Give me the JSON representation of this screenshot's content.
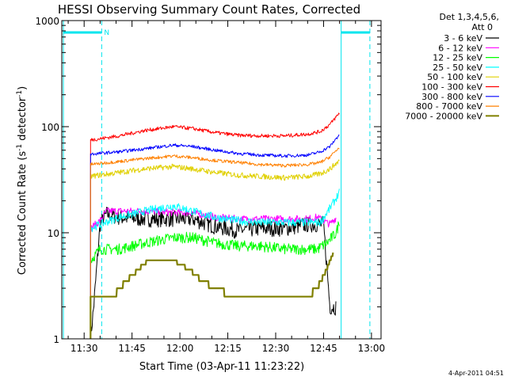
{
  "chart_data": {
    "type": "line",
    "title": "HESSI Observing Summary Count Rates, Corrected",
    "xlabel": "Start Time (03-Apr-11 11:23:22)",
    "ylabel_parts": [
      "Corrected Count Rate (s",
      "-1",
      " detector",
      "-1",
      ")"
    ],
    "ylog": true,
    "ylim": [
      1,
      1000
    ],
    "xlim_minutes_after_1123": [
      0,
      100
    ],
    "x_ticks": [
      {
        "label": "11:30",
        "t": 7
      },
      {
        "label": "11:45",
        "t": 22
      },
      {
        "label": "12:00",
        "t": 37
      },
      {
        "label": "12:15",
        "t": 52
      },
      {
        "label": "12:30",
        "t": 67
      },
      {
        "label": "12:45",
        "t": 82
      },
      {
        "label": "13:00",
        "t": 97
      }
    ],
    "y_ticks": [
      {
        "label": "1",
        "v": 1
      },
      {
        "label": "10",
        "v": 10
      },
      {
        "label": "100",
        "v": 100
      },
      {
        "label": "1000",
        "v": 1000
      }
    ],
    "legend_header": [
      "Det 1,3,4,5,6,",
      "Att 0"
    ],
    "night_marker": "N",
    "night_bars": [
      [
        0,
        12.5
      ],
      [
        87.5,
        96.5
      ]
    ],
    "night_boundaries": [
      -2,
      12.5,
      87.5,
      96.5
    ],
    "footer_date": "4-Apr-2011 04:51",
    "series": [
      {
        "name": "3 - 6 keV",
        "color": "#000000",
        "points": [
          [
            9,
            1.0
          ],
          [
            10,
            2.0
          ],
          [
            12,
            12
          ],
          [
            14,
            15
          ],
          [
            18,
            14
          ],
          [
            26,
            13.5
          ],
          [
            35,
            13.5
          ],
          [
            41,
            13.5
          ],
          [
            48,
            11.5
          ],
          [
            55,
            10.5
          ],
          [
            62,
            11
          ],
          [
            70,
            11
          ],
          [
            77,
            12
          ],
          [
            82,
            12
          ],
          [
            84,
            2
          ],
          [
            86,
            2
          ]
        ]
      },
      {
        "name": "6 - 12 keV",
        "color": "#ff00ff",
        "points": [
          [
            9,
            11
          ],
          [
            12,
            13
          ],
          [
            14,
            16
          ],
          [
            18,
            16
          ],
          [
            26,
            16
          ],
          [
            35,
            15.5
          ],
          [
            41,
            15.5
          ],
          [
            48,
            14
          ],
          [
            55,
            13.5
          ],
          [
            62,
            13.5
          ],
          [
            70,
            13.5
          ],
          [
            77,
            13.5
          ],
          [
            80,
            14
          ],
          [
            84,
            12
          ],
          [
            86,
            14
          ]
        ]
      },
      {
        "name": "12 - 25 keV",
        "color": "#00ff00",
        "points": [
          [
            9,
            5.5
          ],
          [
            12,
            7
          ],
          [
            18,
            7
          ],
          [
            26,
            8
          ],
          [
            35,
            9
          ],
          [
            41,
            9
          ],
          [
            48,
            8
          ],
          [
            55,
            7.5
          ],
          [
            62,
            7.5
          ],
          [
            70,
            7
          ],
          [
            77,
            7
          ],
          [
            80,
            7
          ],
          [
            83,
            8
          ],
          [
            86,
            10
          ],
          [
            87,
            13
          ]
        ]
      },
      {
        "name": "25 - 50 keV",
        "color": "#00ffff",
        "points": [
          [
            9,
            11
          ],
          [
            12,
            12
          ],
          [
            18,
            14
          ],
          [
            26,
            16
          ],
          [
            35,
            18
          ],
          [
            41,
            16
          ],
          [
            48,
            14
          ],
          [
            55,
            13
          ],
          [
            62,
            12.5
          ],
          [
            70,
            12.5
          ],
          [
            77,
            12.5
          ],
          [
            81,
            12.5
          ],
          [
            84,
            17
          ],
          [
            87,
            24
          ]
        ]
      },
      {
        "name": "50 - 100 keV",
        "color": "#e0d000",
        "points": [
          [
            9,
            34
          ],
          [
            12,
            35
          ],
          [
            18,
            37
          ],
          [
            26,
            40
          ],
          [
            35,
            42
          ],
          [
            41,
            40
          ],
          [
            48,
            37
          ],
          [
            55,
            35
          ],
          [
            62,
            34
          ],
          [
            70,
            33
          ],
          [
            77,
            34
          ],
          [
            81,
            36
          ],
          [
            84,
            40
          ],
          [
            87,
            48
          ]
        ]
      },
      {
        "name": "100 - 300 keV",
        "color": "#ff0000",
        "points": [
          [
            9,
            75
          ],
          [
            12,
            77
          ],
          [
            18,
            82
          ],
          [
            26,
            92
          ],
          [
            35,
            100
          ],
          [
            41,
            96
          ],
          [
            48,
            88
          ],
          [
            55,
            83
          ],
          [
            62,
            82
          ],
          [
            70,
            82
          ],
          [
            77,
            85
          ],
          [
            81,
            90
          ],
          [
            84,
            105
          ],
          [
            87,
            135
          ]
        ]
      },
      {
        "name": "300 - 800 keV",
        "color": "#0000ff",
        "points": [
          [
            9,
            55
          ],
          [
            12,
            56
          ],
          [
            18,
            58
          ],
          [
            26,
            62
          ],
          [
            35,
            67
          ],
          [
            41,
            65
          ],
          [
            48,
            60
          ],
          [
            55,
            56
          ],
          [
            62,
            54
          ],
          [
            70,
            53
          ],
          [
            77,
            54
          ],
          [
            81,
            58
          ],
          [
            84,
            65
          ],
          [
            87,
            85
          ]
        ]
      },
      {
        "name": "800 - 7000 keV",
        "color": "#ff8000",
        "points": [
          [
            9,
            44
          ],
          [
            12,
            45
          ],
          [
            18,
            47
          ],
          [
            26,
            50
          ],
          [
            35,
            53
          ],
          [
            41,
            51
          ],
          [
            48,
            48
          ],
          [
            55,
            46
          ],
          [
            62,
            44
          ],
          [
            70,
            43
          ],
          [
            77,
            44
          ],
          [
            81,
            46
          ],
          [
            84,
            52
          ],
          [
            87,
            64
          ]
        ]
      },
      {
        "name": "7000 - 20000 keV",
        "color": "#808000",
        "points": [
          [
            9,
            2.5
          ],
          [
            12,
            2.5
          ],
          [
            16,
            2.5
          ],
          [
            20,
            3.5
          ],
          [
            24,
            4.5
          ],
          [
            27,
            5.5
          ],
          [
            35,
            5.5
          ],
          [
            40,
            4.5
          ],
          [
            44,
            3.5
          ],
          [
            48,
            3
          ],
          [
            54,
            2.5
          ],
          [
            62,
            2.5
          ],
          [
            70,
            2.5
          ],
          [
            77,
            2.5
          ],
          [
            80,
            3
          ],
          [
            83,
            4.5
          ],
          [
            85,
            6.5
          ]
        ]
      }
    ]
  }
}
